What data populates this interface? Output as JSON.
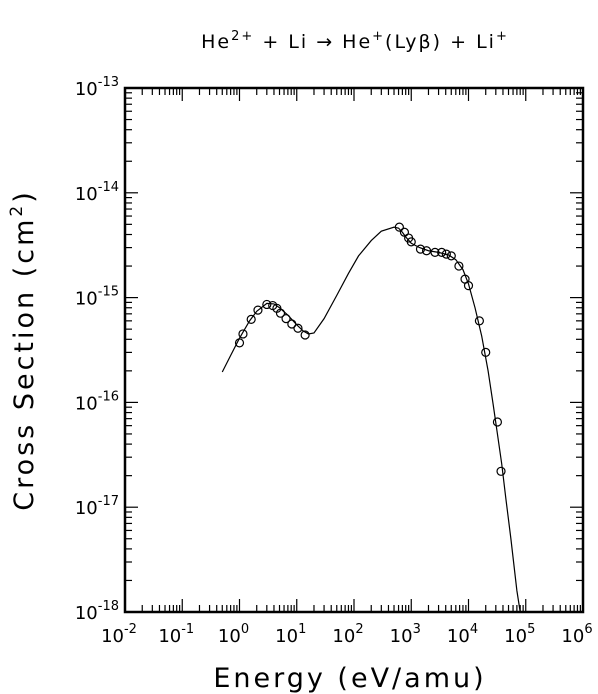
{
  "chart_data": {
    "type": "scatter",
    "title": {
      "base1": "He",
      "sup1": "2+",
      "base2": " + Li → He",
      "sup2": "+",
      "base3": "(Lyβ) + Li",
      "sup3": "+"
    },
    "xlabel": "Energy (eV/amu)",
    "ylabel": {
      "text": "Cross Section (cm",
      "sup": "2",
      "close": ")"
    },
    "x_scale": "log",
    "y_scale": "log",
    "xlim": [
      0.01,
      1000000
    ],
    "ylim": [
      1e-18,
      1e-13
    ],
    "x_ticks": [
      {
        "base": "10",
        "exp": "-2",
        "value": 0.01
      },
      {
        "base": "10",
        "exp": "-1",
        "value": 0.1
      },
      {
        "base": "10",
        "exp": "0",
        "value": 1
      },
      {
        "base": "10",
        "exp": "1",
        "value": 10
      },
      {
        "base": "10",
        "exp": "2",
        "value": 100
      },
      {
        "base": "10",
        "exp": "3",
        "value": 1000
      },
      {
        "base": "10",
        "exp": "4",
        "value": 10000
      },
      {
        "base": "10",
        "exp": "5",
        "value": 100000
      },
      {
        "base": "10",
        "exp": "6",
        "value": 1000000
      }
    ],
    "y_ticks": [
      {
        "base": "10",
        "exp": "-18",
        "value": 1e-18
      },
      {
        "base": "10",
        "exp": "-17",
        "value": 1e-17
      },
      {
        "base": "10",
        "exp": "-16",
        "value": 1e-16
      },
      {
        "base": "10",
        "exp": "-15",
        "value": 1e-15
      },
      {
        "base": "10",
        "exp": "-14",
        "value": 1e-14
      },
      {
        "base": "10",
        "exp": "-13",
        "value": 1e-13
      }
    ],
    "grid": false,
    "legend": "none",
    "series": [
      {
        "kind": "line",
        "x": [
          0.5,
          0.7,
          1.0,
          1.5,
          2.0,
          3.0,
          4.0,
          5.0,
          7.0,
          10,
          13,
          16,
          20,
          30,
          50,
          80,
          120,
          200,
          300,
          500,
          600,
          700,
          800,
          1000,
          1400,
          2000,
          3000,
          4500,
          6000,
          8000,
          10000,
          13000,
          17000,
          22000,
          27000,
          32000,
          38000,
          45000,
          55000,
          70000,
          80000
        ],
        "y": [
          1.95e-16,
          2.8e-16,
          4.1e-16,
          6e-16,
          7.4e-16,
          8.8e-16,
          8.7e-16,
          8e-16,
          6.8e-16,
          5.5e-16,
          4.8e-16,
          4.5e-16,
          4.6e-16,
          6.3e-16,
          1.05e-15,
          1.7e-15,
          2.5e-15,
          3.5e-15,
          4.3e-15,
          4.7e-15,
          4.6e-15,
          4.2e-15,
          3.8e-15,
          3.3e-15,
          3e-15,
          2.8e-15,
          2.7e-15,
          2.55e-15,
          2.3e-15,
          1.85e-15,
          1.35e-15,
          8e-16,
          4.3e-16,
          2e-16,
          9.5e-17,
          5e-17,
          2.6e-17,
          1.2e-17,
          5e-18,
          1.6e-18,
          1e-18
        ]
      },
      {
        "kind": "points",
        "marker": "open-circle",
        "x": [
          1.0,
          1.15,
          1.6,
          2.1,
          3.0,
          3.8,
          4.5,
          5.2,
          6.5,
          8.2,
          10.5,
          14,
          620,
          760,
          900,
          1000,
          1450,
          1850,
          2600,
          3400,
          4100,
          5000,
          6800,
          8700,
          10000,
          15500,
          20000,
          32000,
          37000
        ],
        "y": [
          3.7e-16,
          4.5e-16,
          6.2e-16,
          7.6e-16,
          8.6e-16,
          8.4e-16,
          7.9e-16,
          7.1e-16,
          6.3e-16,
          5.6e-16,
          5.1e-16,
          4.4e-16,
          4.7e-15,
          4.2e-15,
          3.7e-15,
          3.4e-15,
          2.9e-15,
          2.8e-15,
          2.7e-15,
          2.7e-15,
          2.6e-15,
          2.5e-15,
          2e-15,
          1.5e-15,
          1.3e-15,
          6e-16,
          3e-16,
          6.5e-17,
          2.2e-17
        ]
      }
    ]
  }
}
